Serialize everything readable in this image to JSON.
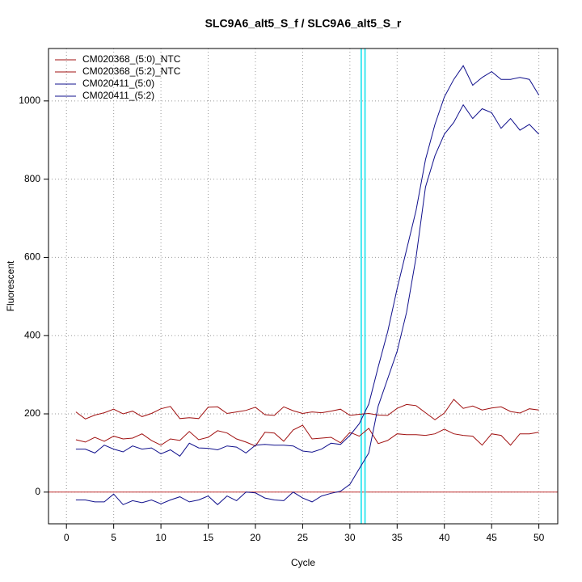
{
  "chart_data": {
    "type": "line",
    "title": "SLC9A6_alt5_S_f / SLC9A6_alt5_S_r",
    "x_label": "Cycle",
    "y_label": "Fluorescent",
    "x": [
      1,
      2,
      3,
      4,
      5,
      6,
      7,
      8,
      9,
      10,
      11,
      12,
      13,
      14,
      15,
      16,
      17,
      18,
      19,
      20,
      21,
      22,
      23,
      24,
      25,
      26,
      27,
      28,
      29,
      30,
      31,
      32,
      33,
      34,
      35,
      36,
      37,
      38,
      39,
      40,
      41,
      42,
      43,
      44,
      45,
      46,
      47,
      48,
      49,
      50
    ],
    "series": [
      {
        "name": "CM020368_(5:0)_NTC",
        "color": "#a01010",
        "values": [
          205,
          187,
          197,
          203,
          212,
          200,
          207,
          193,
          201,
          213,
          219,
          188,
          190,
          188,
          217,
          218,
          201,
          205,
          209,
          217,
          198,
          196,
          218,
          208,
          201,
          205,
          203,
          207,
          212,
          196,
          199,
          201,
          197,
          196,
          214,
          224,
          221,
          203,
          185,
          202,
          237,
          214,
          220,
          210,
          215,
          218,
          206,
          202,
          213,
          210
        ]
      },
      {
        "name": "CM020368_(5:2)_NTC",
        "color": "#a01010",
        "values": [
          134,
          128,
          140,
          130,
          143,
          136,
          138,
          149,
          132,
          120,
          136,
          132,
          155,
          134,
          140,
          157,
          151,
          136,
          128,
          118,
          153,
          151,
          130,
          159,
          171,
          136,
          138,
          140,
          126,
          153,
          143,
          163,
          124,
          132,
          149,
          147,
          147,
          145,
          149,
          161,
          149,
          145,
          143,
          120,
          149,
          145,
          120,
          149,
          149,
          153
        ]
      },
      {
        "name": "CM020411_(5:0)",
        "color": "#10108c",
        "values": [
          110,
          110,
          100,
          120,
          110,
          103,
          118,
          110,
          113,
          98,
          108,
          92,
          125,
          113,
          112,
          108,
          118,
          115,
          100,
          120,
          122,
          120,
          120,
          118,
          105,
          102,
          110,
          125,
          122,
          145,
          175,
          225,
          320,
          410,
          520,
          620,
          720,
          850,
          940,
          1010,
          1055,
          1090,
          1040,
          1060,
          1075,
          1055,
          1055,
          1060,
          1055,
          1015
        ]
      },
      {
        "name": "CM020411_(5:2)",
        "color": "#10108c",
        "values": [
          -20,
          -20,
          -25,
          -25,
          -5,
          -32,
          -22,
          -27,
          -20,
          -30,
          -20,
          -12,
          -25,
          -20,
          -10,
          -32,
          -10,
          -22,
          0,
          -2,
          -15,
          -20,
          -22,
          0,
          -15,
          -25,
          -10,
          -3,
          2,
          20,
          60,
          100,
          220,
          290,
          360,
          460,
          600,
          780,
          860,
          915,
          945,
          990,
          955,
          980,
          970,
          930,
          955,
          925,
          940,
          915
        ]
      }
    ],
    "xlim": [
      -1.9,
      52
    ],
    "ylim": [
      -81,
      1134
    ],
    "xticks": [
      0,
      5,
      10,
      15,
      20,
      25,
      30,
      35,
      40,
      45,
      50
    ],
    "yticks": [
      0,
      200,
      400,
      600,
      800,
      1000
    ],
    "grid": true,
    "legend": "topleft",
    "hline": {
      "value": 0,
      "color": "#c03030"
    },
    "vlines": {
      "values": [
        31.2,
        31.6
      ],
      "color": "#40e8f0"
    }
  }
}
